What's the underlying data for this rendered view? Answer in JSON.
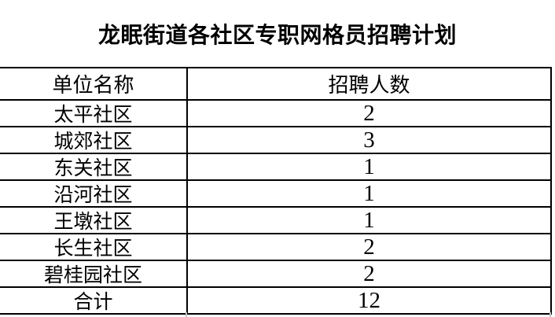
{
  "page": {
    "title": "龙眠街道各社区专职网格员招聘计划"
  },
  "table": {
    "columns": [
      "单位名称",
      "招聘人数"
    ],
    "rows": [
      {
        "unit": "太平社区",
        "count": "2"
      },
      {
        "unit": "城郊社区",
        "count": "3"
      },
      {
        "unit": "东关社区",
        "count": "1"
      },
      {
        "unit": "沿河社区",
        "count": "1"
      },
      {
        "unit": "王墩社区",
        "count": "1"
      },
      {
        "unit": "长生社区",
        "count": "2"
      },
      {
        "unit": "碧桂园社区",
        "count": "2"
      },
      {
        "unit": "合计",
        "count": "12"
      }
    ]
  },
  "colors": {
    "background": "#ffffff",
    "gridline": "#000000",
    "text": "#000000",
    "stub_gray": "#c4c4c4"
  }
}
